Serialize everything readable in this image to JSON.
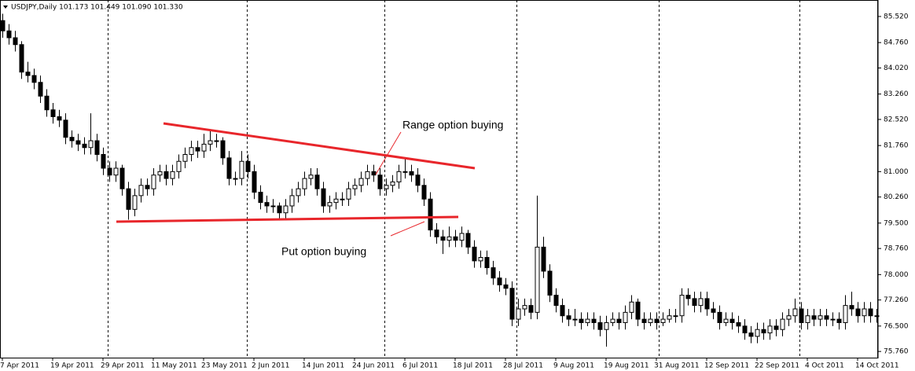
{
  "chart_data": {
    "type": "candlestick",
    "header": "USDJPY,Daily  101.173 101.449 101.090 101.330",
    "annotations": [
      "Range option buying",
      "Put option buying"
    ],
    "up_color": "#ffffff",
    "down_color": "#000000",
    "line_color": "#e8262b",
    "grid": false,
    "ylim": [
      75.58,
      86.0
    ],
    "yticks": [
      {
        "value": 85.52,
        "label": "85.520"
      },
      {
        "value": 84.76,
        "label": "84.760"
      },
      {
        "value": 84.02,
        "label": "84.020"
      },
      {
        "value": 83.26,
        "label": "83.260"
      },
      {
        "value": 82.52,
        "label": "82.520"
      },
      {
        "value": 81.76,
        "label": "81.760"
      },
      {
        "value": 81.0,
        "label": "81.000"
      },
      {
        "value": 80.26,
        "label": "80.260"
      },
      {
        "value": 79.5,
        "label": "79.500"
      },
      {
        "value": 78.76,
        "label": "78.760"
      },
      {
        "value": 78.0,
        "label": "78.000"
      },
      {
        "value": 77.26,
        "label": "77.260"
      },
      {
        "value": 76.5,
        "label": "76.500"
      },
      {
        "value": 75.76,
        "label": "75.760"
      }
    ],
    "categories": [
      "7 Apr 2011",
      null,
      null,
      null,
      null,
      null,
      null,
      null,
      "19 Apr 2011",
      null,
      null,
      null,
      null,
      null,
      null,
      null,
      "29 Apr 2011",
      null,
      null,
      null,
      null,
      null,
      null,
      null,
      "11 May 2011",
      null,
      null,
      null,
      null,
      null,
      null,
      null,
      "23 May 2011",
      null,
      null,
      null,
      null,
      null,
      null,
      null,
      "2 Jun 2011",
      null,
      null,
      null,
      null,
      null,
      null,
      null,
      "14 Jun 2011",
      null,
      null,
      null,
      null,
      null,
      null,
      null,
      "24 Jun 2011",
      null,
      null,
      null,
      null,
      null,
      null,
      null,
      "6 Jul 2011",
      null,
      null,
      null,
      null,
      null,
      null,
      null,
      "18 Jul 2011",
      null,
      null,
      null,
      null,
      null,
      null,
      null,
      "28 Jul 2011",
      null,
      null,
      null,
      null,
      null,
      null,
      null,
      "9 Aug 2011",
      null,
      null,
      null,
      null,
      null,
      null,
      null,
      "19 Aug 2011",
      null,
      null,
      null,
      null,
      null,
      null,
      null,
      "31 Aug 2011",
      null,
      null,
      null,
      null,
      null,
      null,
      null,
      "12 Sep 2011",
      null,
      null,
      null,
      null,
      null,
      null,
      null,
      "22 Sep 2011",
      null,
      null,
      null,
      null,
      null,
      null,
      null,
      "4 Oct 2011",
      null,
      null,
      null,
      null,
      null,
      null,
      null,
      "14 Oct 2011",
      null,
      null,
      null
    ],
    "ohlc": [
      [
        85.4,
        85.6,
        84.9,
        85.1
      ],
      [
        85.1,
        85.3,
        84.7,
        84.9
      ],
      [
        84.9,
        85.1,
        84.5,
        84.7
      ],
      [
        84.7,
        84.8,
        83.7,
        83.9
      ],
      [
        83.9,
        84.2,
        83.6,
        83.8
      ],
      [
        83.8,
        84.0,
        83.4,
        83.6
      ],
      [
        83.6,
        83.8,
        83.0,
        83.2
      ],
      [
        83.2,
        83.4,
        82.6,
        82.8
      ],
      [
        82.8,
        83.0,
        82.4,
        82.6
      ],
      [
        82.6,
        82.8,
        82.3,
        82.5
      ],
      [
        82.5,
        82.7,
        81.8,
        82.0
      ],
      [
        82.0,
        82.2,
        81.7,
        81.9
      ],
      [
        81.9,
        82.1,
        81.6,
        81.8
      ],
      [
        81.8,
        82.0,
        81.5,
        81.7
      ],
      [
        81.7,
        82.7,
        81.5,
        81.9
      ],
      [
        81.9,
        82.1,
        81.3,
        81.5
      ],
      [
        81.5,
        81.7,
        80.9,
        81.1
      ],
      [
        81.1,
        81.3,
        80.7,
        80.9
      ],
      [
        80.9,
        81.3,
        80.7,
        81.1
      ],
      [
        81.1,
        81.2,
        80.3,
        80.5
      ],
      [
        80.5,
        80.7,
        79.6,
        79.9
      ],
      [
        79.9,
        80.5,
        79.7,
        80.3
      ],
      [
        80.3,
        80.8,
        80.1,
        80.6
      ],
      [
        80.6,
        80.8,
        80.3,
        80.5
      ],
      [
        80.5,
        81.1,
        80.3,
        80.9
      ],
      [
        80.9,
        81.2,
        80.7,
        81.0
      ],
      [
        81.0,
        81.2,
        80.6,
        80.8
      ],
      [
        80.8,
        81.2,
        80.6,
        81.0
      ],
      [
        81.0,
        81.5,
        80.8,
        81.3
      ],
      [
        81.3,
        81.7,
        81.1,
        81.5
      ],
      [
        81.5,
        81.9,
        81.3,
        81.7
      ],
      [
        81.7,
        81.9,
        81.4,
        81.6
      ],
      [
        81.6,
        82.1,
        81.4,
        81.8
      ],
      [
        81.8,
        82.2,
        81.6,
        81.9
      ],
      [
        81.9,
        82.1,
        81.7,
        81.9
      ],
      [
        81.9,
        82.0,
        81.2,
        81.4
      ],
      [
        81.4,
        81.6,
        80.6,
        80.8
      ],
      [
        80.8,
        81.0,
        80.6,
        80.8
      ],
      [
        80.8,
        81.6,
        80.6,
        81.3
      ],
      [
        81.3,
        81.5,
        80.8,
        81.0
      ],
      [
        81.0,
        81.2,
        80.2,
        80.4
      ],
      [
        80.4,
        80.6,
        79.9,
        80.1
      ],
      [
        80.1,
        80.3,
        79.8,
        80.0
      ],
      [
        80.0,
        80.2,
        79.8,
        80.0
      ],
      [
        80.0,
        80.1,
        79.6,
        79.8
      ],
      [
        79.8,
        80.2,
        79.6,
        80.0
      ],
      [
        80.0,
        80.5,
        79.8,
        80.3
      ],
      [
        80.3,
        80.7,
        80.1,
        80.5
      ],
      [
        80.5,
        81.0,
        80.3,
        80.8
      ],
      [
        80.8,
        81.1,
        80.6,
        80.9
      ],
      [
        80.9,
        81.1,
        80.3,
        80.5
      ],
      [
        80.5,
        80.7,
        79.8,
        80.0
      ],
      [
        80.0,
        80.3,
        79.8,
        80.1
      ],
      [
        80.1,
        80.4,
        79.9,
        80.2
      ],
      [
        80.2,
        80.4,
        80.0,
        80.2
      ],
      [
        80.2,
        80.7,
        80.0,
        80.5
      ],
      [
        80.5,
        80.8,
        80.3,
        80.6
      ],
      [
        80.6,
        81.0,
        80.4,
        80.8
      ],
      [
        80.8,
        81.2,
        80.6,
        81.0
      ],
      [
        81.0,
        81.2,
        80.7,
        80.9
      ],
      [
        80.9,
        81.1,
        80.3,
        80.5
      ],
      [
        80.5,
        80.8,
        80.3,
        80.6
      ],
      [
        80.6,
        80.9,
        80.4,
        80.7
      ],
      [
        80.7,
        81.2,
        80.5,
        81.0
      ],
      [
        81.0,
        81.4,
        80.8,
        81.0
      ],
      [
        81.0,
        81.2,
        80.7,
        80.9
      ],
      [
        80.9,
        81.1,
        80.4,
        80.6
      ],
      [
        80.6,
        80.8,
        80.0,
        80.2
      ],
      [
        80.2,
        80.4,
        79.1,
        79.3
      ],
      [
        79.3,
        79.5,
        78.9,
        79.1
      ],
      [
        79.1,
        79.3,
        78.6,
        79.0
      ],
      [
        79.0,
        79.4,
        78.8,
        79.1
      ],
      [
        79.1,
        79.3,
        78.8,
        79.0
      ],
      [
        79.0,
        79.4,
        78.8,
        79.2
      ],
      [
        79.2,
        79.3,
        78.6,
        78.8
      ],
      [
        78.8,
        79.0,
        78.2,
        78.4
      ],
      [
        78.4,
        78.7,
        78.2,
        78.5
      ],
      [
        78.5,
        78.7,
        78.0,
        78.2
      ],
      [
        78.2,
        78.4,
        77.7,
        77.9
      ],
      [
        77.9,
        78.1,
        77.5,
        77.7
      ],
      [
        77.7,
        77.9,
        77.4,
        77.6
      ],
      [
        77.6,
        77.8,
        76.5,
        76.7
      ],
      [
        76.7,
        77.3,
        76.5,
        77.0
      ],
      [
        77.0,
        77.3,
        76.8,
        77.1
      ],
      [
        77.1,
        77.3,
        76.7,
        76.9
      ],
      [
        76.9,
        80.3,
        76.7,
        78.8
      ],
      [
        78.8,
        79.1,
        77.9,
        78.1
      ],
      [
        78.1,
        78.3,
        77.2,
        77.4
      ],
      [
        77.4,
        77.6,
        76.9,
        77.1
      ],
      [
        77.1,
        77.3,
        76.6,
        76.8
      ],
      [
        76.8,
        77.0,
        76.5,
        76.7
      ],
      [
        76.7,
        77.0,
        76.5,
        76.7
      ],
      [
        76.7,
        76.9,
        76.4,
        76.6
      ],
      [
        76.6,
        76.9,
        76.5,
        76.7
      ],
      [
        76.7,
        76.9,
        76.4,
        76.6
      ],
      [
        76.6,
        76.8,
        76.2,
        76.4
      ],
      [
        76.4,
        76.8,
        75.9,
        76.6
      ],
      [
        76.6,
        76.9,
        76.5,
        76.7
      ],
      [
        76.7,
        76.9,
        76.4,
        76.6
      ],
      [
        76.6,
        77.1,
        76.4,
        76.9
      ],
      [
        76.9,
        77.4,
        76.7,
        77.2
      ],
      [
        77.2,
        77.3,
        76.5,
        76.7
      ],
      [
        76.7,
        76.9,
        76.4,
        76.6
      ],
      [
        76.6,
        76.9,
        76.5,
        76.7
      ],
      [
        76.7,
        76.9,
        76.4,
        76.6
      ],
      [
        76.6,
        76.9,
        76.5,
        76.7
      ],
      [
        76.7,
        77.0,
        76.6,
        76.8
      ],
      [
        76.8,
        77.0,
        76.6,
        76.8
      ],
      [
        76.8,
        77.6,
        76.6,
        77.4
      ],
      [
        77.4,
        77.6,
        77.1,
        77.3
      ],
      [
        77.3,
        77.5,
        76.9,
        77.1
      ],
      [
        77.1,
        77.5,
        76.9,
        77.3
      ],
      [
        77.3,
        77.5,
        76.8,
        77.0
      ],
      [
        77.0,
        77.2,
        76.7,
        76.9
      ],
      [
        76.9,
        77.1,
        76.4,
        76.6
      ],
      [
        76.6,
        76.9,
        76.5,
        76.7
      ],
      [
        76.7,
        76.9,
        76.4,
        76.6
      ],
      [
        76.6,
        76.8,
        76.3,
        76.5
      ],
      [
        76.5,
        76.7,
        76.1,
        76.3
      ],
      [
        76.3,
        76.5,
        76.0,
        76.2
      ],
      [
        76.2,
        76.6,
        76.0,
        76.4
      ],
      [
        76.4,
        76.6,
        76.1,
        76.3
      ],
      [
        76.3,
        76.7,
        76.1,
        76.5
      ],
      [
        76.5,
        76.7,
        76.2,
        76.4
      ],
      [
        76.4,
        76.9,
        76.2,
        76.7
      ],
      [
        76.7,
        77.0,
        76.5,
        76.8
      ],
      [
        76.8,
        77.3,
        76.6,
        77.0
      ],
      [
        77.0,
        77.2,
        76.4,
        76.6
      ],
      [
        76.6,
        77.0,
        76.4,
        76.8
      ],
      [
        76.8,
        77.0,
        76.5,
        76.7
      ],
      [
        76.7,
        77.0,
        76.5,
        76.8
      ],
      [
        76.8,
        77.0,
        76.5,
        76.7
      ],
      [
        76.7,
        76.9,
        76.5,
        76.7
      ],
      [
        76.7,
        76.9,
        76.4,
        76.6
      ],
      [
        76.6,
        77.4,
        76.4,
        77.1
      ],
      [
        77.1,
        77.5,
        76.8,
        77.0
      ],
      [
        77.0,
        77.2,
        76.6,
        76.8
      ],
      [
        76.8,
        77.2,
        76.6,
        77.0
      ],
      [
        77.0,
        77.2,
        76.6,
        76.8
      ],
      [
        76.8,
        77.0,
        76.6,
        76.8
      ]
    ]
  }
}
